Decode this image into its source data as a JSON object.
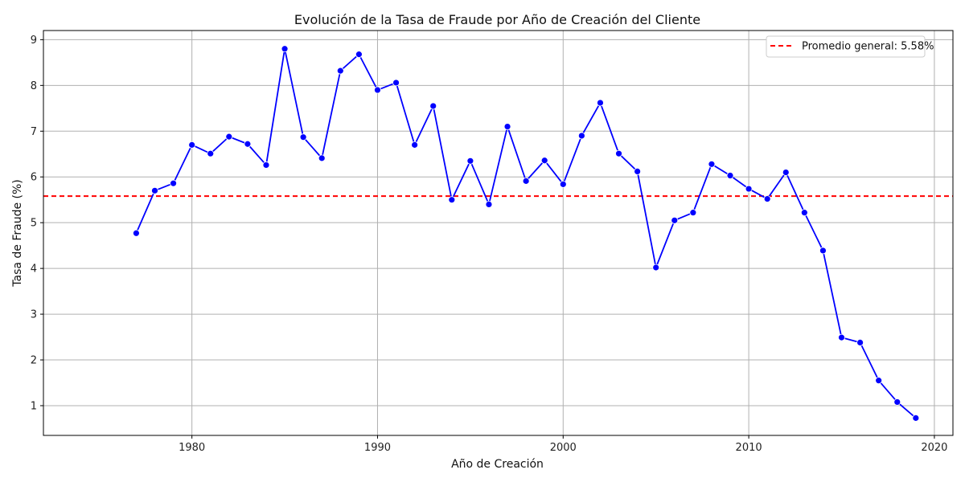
{
  "chart_data": {
    "type": "line",
    "title": "Evolución de la Tasa de Fraude por Año de Creación del Cliente",
    "xlabel": "Año de Creación",
    "ylabel": "Tasa de Fraude (%)",
    "xlim": [
      1972,
      2021
    ],
    "ylim": [
      0.35,
      9.2
    ],
    "xticks": [
      1980,
      1990,
      2000,
      2010,
      2020
    ],
    "yticks": [
      1,
      2,
      3,
      4,
      5,
      6,
      7,
      8,
      9
    ],
    "grid": true,
    "legend_position": "top-right",
    "series": [
      {
        "color": "#0000ff",
        "marker": "circle",
        "x": [
          1977,
          1978,
          1979,
          1980,
          1981,
          1982,
          1983,
          1984,
          1985,
          1986,
          1987,
          1988,
          1989,
          1990,
          1991,
          1992,
          1993,
          1994,
          1995,
          1996,
          1997,
          1998,
          1999,
          2000,
          2001,
          2002,
          2003,
          2004,
          2005,
          2006,
          2007,
          2008,
          2009,
          2010,
          2011,
          2012,
          2013,
          2014,
          2015,
          2016,
          2017,
          2018,
          2019
        ],
        "y": [
          4.77,
          5.7,
          5.86,
          6.7,
          6.51,
          6.88,
          6.72,
          6.26,
          8.8,
          6.87,
          6.41,
          8.32,
          8.68,
          7.9,
          8.06,
          6.7,
          7.55,
          5.5,
          6.35,
          5.4,
          7.1,
          5.91,
          6.36,
          5.84,
          6.9,
          7.62,
          6.51,
          6.12,
          4.02,
          5.05,
          5.22,
          6.28,
          6.03,
          5.74,
          5.52,
          6.1,
          5.22,
          4.39,
          2.49,
          2.38,
          1.55,
          1.08,
          0.73
        ]
      }
    ],
    "reference_lines": [
      {
        "name": "Promedio general: 5.58%",
        "value": 5.58,
        "color": "#ff0000",
        "style": "dashed"
      }
    ]
  }
}
